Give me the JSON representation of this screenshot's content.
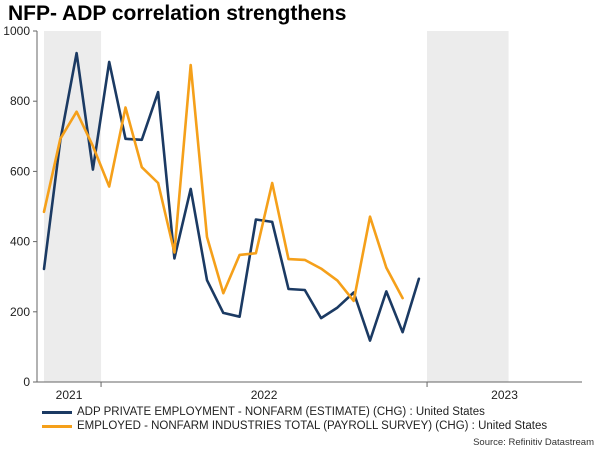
{
  "chart_data": {
    "type": "line",
    "title": "NFP- ADP correlation strengthens",
    "xlabel": "",
    "ylabel": "",
    "ylim": [
      0,
      1000
    ],
    "yticks": [
      0,
      200,
      400,
      600,
      800,
      1000
    ],
    "x_period_labels": [
      "2021",
      "2022",
      "2023"
    ],
    "x": [
      "2020-12",
      "2021-01",
      "2021-02",
      "2021-03",
      "2021-04",
      "2021-05",
      "2021-06",
      "2021-07",
      "2021-08",
      "2021-09",
      "2021-10",
      "2021-11",
      "2021-12",
      "2022-01",
      "2022-02",
      "2022-03",
      "2022-04",
      "2022-05",
      "2022-06",
      "2022-07",
      "2022-08",
      "2022-09",
      "2022-10",
      "2022-11",
      "2022-12",
      "2023-01",
      "2023-02",
      "2023-03",
      "2023-04"
    ],
    "shaded_periods": [
      [
        0,
        3.5
      ],
      [
        23.5,
        28.5
      ]
    ],
    "grid": "off",
    "series": [
      {
        "name": "ADP PRIVATE EMPLOYMENT - NONFARM (ESTIMATE) (CHG) : United States",
        "color": "#1b3a63",
        "values": [
          322,
          688,
          937,
          605,
          912,
          693,
          690,
          826,
          352,
          550,
          290,
          197,
          186,
          463,
          456,
          265,
          262,
          182,
          212,
          255,
          118,
          258,
          142,
          294,
          null,
          null,
          null,
          null,
          null
        ]
      },
      {
        "name": "EMPLOYED - NONFARM INDUSTRIES TOTAL (PAYROLL SURVEY) (CHG) : United States",
        "color": "#f5a01a",
        "values": [
          485,
          693,
          770,
          672,
          557,
          782,
          612,
          567,
          369,
          903,
          413,
          253,
          362,
          367,
          567,
          350,
          348,
          323,
          289,
          231,
          471,
          326,
          239,
          null,
          null,
          null,
          null,
          null,
          null
        ]
      }
    ],
    "source": "Source: Refinitiv Datastream"
  }
}
